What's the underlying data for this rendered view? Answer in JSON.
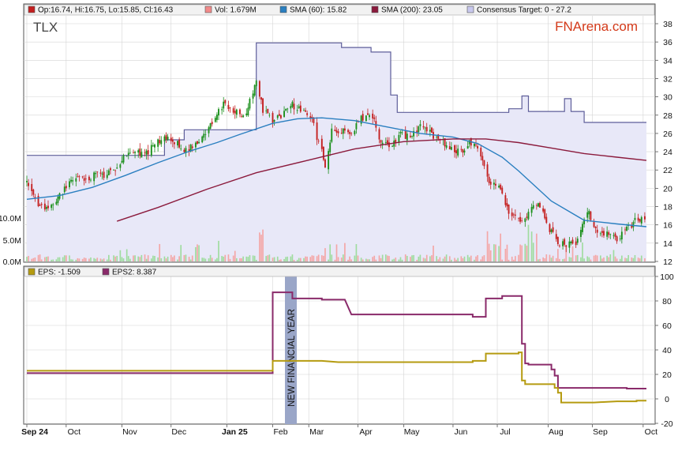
{
  "ticker": "TLX",
  "brand": "FNArena.com",
  "colors": {
    "up": "#1a8f1a",
    "down": "#c41e1e",
    "sma60": "#2a7fc0",
    "sma200": "#8b1a3c",
    "target_line": "#5e5e9a",
    "target_fill": "#e8e8f8",
    "eps": "#b59b10",
    "eps2": "#8a2a6a",
    "brand": "#d43a1a",
    "frame": "#555555",
    "grid": "#d4d4d4",
    "nfy_band": "#9aa6c8"
  },
  "icons": {
    "ohlc": "red-square-icon",
    "vol": "pink-square-icon",
    "sma60": "blue-square-icon",
    "sma200": "maroon-square-icon",
    "target": "lavender-square-icon",
    "eps": "olive-square-icon",
    "eps2": "purple-square-icon"
  },
  "legend_top": {
    "ohlc": "Op:16.74, Hi:16.75, Lo:15.85, Cl:16.43",
    "vol": "Vol: 1.679M",
    "sma60": "SMA (60): 15.82",
    "sma200": "SMA (200): 23.05",
    "target": "Consensus Target: 0 - 27.2"
  },
  "legend_bottom": {
    "eps": "EPS: -1.509",
    "eps2": "EPS2: 8.387"
  },
  "annotation": "NEW FINANCIAL YEAR",
  "chart_data": [
    {
      "type": "candlestick",
      "title": "TLX",
      "x_labels": [
        "Sep 24",
        "Oct",
        "Nov",
        "Dec",
        "Jan 25",
        "Feb",
        "Mar",
        "Apr",
        "May",
        "Jun",
        "Jul",
        "Aug",
        "Sep",
        "Oct"
      ],
      "bold_labels": [
        "Sep 24",
        "Jan 25"
      ],
      "y_ticks": [
        12,
        14,
        16,
        18,
        20,
        22,
        24,
        26,
        28,
        30,
        32,
        34,
        36,
        38
      ],
      "ylim": [
        12,
        39
      ],
      "volume_ticks": [
        "0.0M",
        "5.0M",
        "10.0M"
      ],
      "grid": true,
      "close_path": [
        [
          0,
          20.5
        ],
        [
          6,
          18.5
        ],
        [
          12,
          17.6
        ],
        [
          18,
          18.6
        ],
        [
          24,
          20.2
        ],
        [
          30,
          21.2
        ],
        [
          36,
          20.8
        ],
        [
          42,
          21.6
        ],
        [
          48,
          21.2
        ],
        [
          54,
          22.3
        ],
        [
          60,
          23.6
        ],
        [
          66,
          24.2
        ],
        [
          72,
          23.6
        ],
        [
          78,
          24.8
        ],
        [
          84,
          25.5
        ],
        [
          90,
          25.2
        ],
        [
          96,
          24.3
        ],
        [
          102,
          24.6
        ],
        [
          108,
          25.6
        ],
        [
          114,
          27.6
        ],
        [
          120,
          29.2
        ],
        [
          126,
          28.6
        ],
        [
          132,
          27.6
        ],
        [
          136,
          29.5
        ],
        [
          140,
          31.6
        ],
        [
          144,
          28.6
        ],
        [
          150,
          27.3
        ],
        [
          156,
          28.1
        ],
        [
          162,
          29.1
        ],
        [
          168,
          28.3
        ],
        [
          174,
          27.4
        ],
        [
          180,
          23.9
        ],
        [
          182,
          22.4
        ],
        [
          186,
          26.2
        ],
        [
          192,
          26.4
        ],
        [
          198,
          26.2
        ],
        [
          204,
          27.6
        ],
        [
          210,
          28.3
        ],
        [
          216,
          25.2
        ],
        [
          222,
          24.6
        ],
        [
          228,
          25.9
        ],
        [
          234,
          25.6
        ],
        [
          240,
          26.9
        ],
        [
          246,
          26.0
        ],
        [
          252,
          25.2
        ],
        [
          258,
          24.6
        ],
        [
          264,
          23.9
        ],
        [
          270,
          24.9
        ],
        [
          276,
          24.3
        ],
        [
          282,
          20.6
        ],
        [
          288,
          19.9
        ],
        [
          294,
          17.6
        ],
        [
          300,
          16.6
        ],
        [
          306,
          17.2
        ],
        [
          312,
          18.6
        ],
        [
          318,
          15.6
        ],
        [
          324,
          14.1
        ],
        [
          330,
          13.9
        ],
        [
          336,
          14.2
        ],
        [
          342,
          17.6
        ],
        [
          348,
          14.9
        ],
        [
          354,
          15.1
        ],
        [
          360,
          14.5
        ],
        [
          366,
          15.5
        ],
        [
          372,
          16.6
        ],
        [
          378,
          16.5
        ]
      ],
      "series": [
        {
          "name": "Consensus Target",
          "type": "step-area",
          "values": [
            [
              0,
              23.6
            ],
            [
              84,
              23.6
            ],
            [
              84,
              25.3
            ],
            [
              96,
              25.3
            ],
            [
              96,
              26.4
            ],
            [
              140,
              26.4
            ],
            [
              140,
              35.9
            ],
            [
              192,
              35.9
            ],
            [
              192,
              35.4
            ],
            [
              210,
              35.4
            ],
            [
              210,
              34.9
            ],
            [
              222,
              34.9
            ],
            [
              222,
              30.2
            ],
            [
              226,
              30.2
            ],
            [
              226,
              28.3
            ],
            [
              294,
              28.3
            ],
            [
              294,
              28.7
            ],
            [
              302,
              28.7
            ],
            [
              302,
              30.1
            ],
            [
              306,
              30.1
            ],
            [
              306,
              28.4
            ],
            [
              328,
              28.4
            ],
            [
              328,
              29.8
            ],
            [
              332,
              29.8
            ],
            [
              332,
              28.4
            ],
            [
              340,
              28.4
            ],
            [
              340,
              27.2
            ],
            [
              378,
              27.2
            ]
          ]
        },
        {
          "name": "SMA (60)",
          "values": [
            [
              0,
              18.8
            ],
            [
              20,
              19.2
            ],
            [
              40,
              20.1
            ],
            [
              60,
              21.4
            ],
            [
              80,
              22.8
            ],
            [
              100,
              24.1
            ],
            [
              116,
              25.0
            ],
            [
              130,
              25.9
            ],
            [
              150,
              27.1
            ],
            [
              165,
              27.6
            ],
            [
              180,
              27.7
            ],
            [
              200,
              27.4
            ],
            [
              220,
              26.7
            ],
            [
              240,
              26.0
            ],
            [
              260,
              25.6
            ],
            [
              275,
              24.9
            ],
            [
              290,
              23.4
            ],
            [
              300,
              21.9
            ],
            [
              320,
              18.6
            ],
            [
              340,
              16.5
            ],
            [
              360,
              16.1
            ],
            [
              378,
              15.8
            ]
          ]
        },
        {
          "name": "SMA (200)",
          "values": [
            [
              55,
              16.4
            ],
            [
              80,
              17.9
            ],
            [
              110,
              19.9
            ],
            [
              140,
              21.7
            ],
            [
              170,
              23.0
            ],
            [
              200,
              24.3
            ],
            [
              230,
              25.1
            ],
            [
              260,
              25.4
            ],
            [
              280,
              25.4
            ],
            [
              300,
              25.0
            ],
            [
              320,
              24.4
            ],
            [
              340,
              23.8
            ],
            [
              360,
              23.4
            ],
            [
              378,
              23.05
            ]
          ]
        }
      ]
    },
    {
      "type": "line",
      "y_ticks": [
        -20,
        0,
        20,
        40,
        60,
        80,
        100
      ],
      "ylim": [
        -20,
        100
      ],
      "series": [
        {
          "name": "EPS",
          "values": [
            [
              0,
              23
            ],
            [
              150,
              23
            ],
            [
              150,
              31
            ],
            [
              180,
              31
            ],
            [
              190,
              30
            ],
            [
              272,
              30
            ],
            [
              272,
              31
            ],
            [
              280,
              31
            ],
            [
              280,
              37
            ],
            [
              300,
              37
            ],
            [
              300,
              38
            ],
            [
              302,
              38
            ],
            [
              302,
              15
            ],
            [
              304,
              15
            ],
            [
              304,
              12
            ],
            [
              322,
              12
            ],
            [
              322,
              9
            ],
            [
              324,
              9
            ],
            [
              324,
              5
            ],
            [
              326,
              5
            ],
            [
              326,
              -3
            ],
            [
              346,
              -3
            ],
            [
              346,
              -3
            ],
            [
              360,
              -2
            ],
            [
              372,
              -2
            ],
            [
              372,
              -1.5
            ],
            [
              378,
              -1.5
            ]
          ]
        },
        {
          "name": "EPS2",
          "values": [
            [
              0,
              21
            ],
            [
              150,
              21
            ],
            [
              150,
              87
            ],
            [
              162,
              87
            ],
            [
              162,
              82
            ],
            [
              180,
              82
            ],
            [
              180,
              81
            ],
            [
              194,
              81
            ],
            [
              198,
              69
            ],
            [
              272,
              69
            ],
            [
              272,
              67
            ],
            [
              280,
              67
            ],
            [
              280,
              82
            ],
            [
              290,
              82
            ],
            [
              290,
              84
            ],
            [
              302,
              84
            ],
            [
              302,
              45
            ],
            [
              304,
              45
            ],
            [
              304,
              29
            ],
            [
              306,
              29
            ],
            [
              306,
              28
            ],
            [
              320,
              28
            ],
            [
              320,
              24
            ],
            [
              322,
              24
            ],
            [
              322,
              19
            ],
            [
              324,
              19
            ],
            [
              324,
              9
            ],
            [
              336,
              9
            ],
            [
              366,
              9
            ],
            [
              366,
              8.4
            ],
            [
              372,
              8.4
            ],
            [
              372,
              8.4
            ],
            [
              378,
              8.387
            ]
          ]
        }
      ]
    }
  ]
}
